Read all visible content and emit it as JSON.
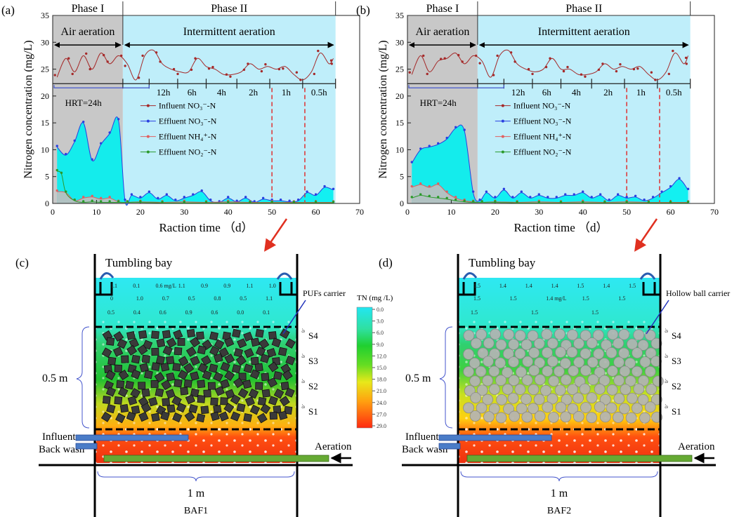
{
  "panels": [
    {
      "id": "a",
      "label": "(a)",
      "phase1": "Phase I",
      "phase2": "Phase II",
      "air": "Air aeration",
      "intermittent": "Intermittent aeration",
      "hrt": "HRT=24h",
      "ylabel": "Nitrogen concentration (mg/L)",
      "xlabel": "Raction time （d）"
    },
    {
      "id": "b",
      "label": "(b)",
      "phase1": "Phase I",
      "phase2": "Phase II",
      "air": "Air aeration",
      "intermittent": "Intermittent aeration",
      "hrt": "HRT=24h",
      "ylabel": "Nitrogen concentration (mg/L)",
      "xlabel": "Raction time （d）"
    }
  ],
  "hrt_segments": [
    "12h",
    "6h",
    "4h",
    "2h",
    "1h",
    "0.5h"
  ],
  "legend": [
    "Influent NO₃⁻-N",
    "Effluent NO₃⁻-N",
    "Effluent NH₄⁺-N",
    "Effluent NO₂⁻-N"
  ],
  "colors": {
    "influent": "#a52a2a",
    "effluent_no3": "#2a40e0",
    "effluent_nh4": "#e06060",
    "effluent_no2": "#2a9a2a",
    "phase1_bg": "#c8c8c8",
    "phase2_bg": "#bfeefa",
    "fill": "#00f0f0",
    "arrow": "#e03020",
    "dash": "#e03030"
  },
  "chart_data": [
    {
      "type": "line",
      "title": "(a)",
      "xlabel": "Raction time （d）",
      "ylabel": "Nitrogen concentration (mg/L)",
      "xlim": [
        0,
        70
      ],
      "ylim": [
        0,
        35
      ],
      "xticks": [
        0,
        10,
        20,
        30,
        40,
        50,
        60,
        70
      ],
      "yticks": [
        0,
        5,
        10,
        15,
        20,
        25,
        30,
        35
      ],
      "phase_boundaries": [
        16,
        64.5
      ],
      "hrt_breaks": [
        16,
        22,
        28.5,
        35,
        42,
        49.5,
        57,
        64.5
      ],
      "marker_lines": [
        50,
        57.5
      ],
      "series": [
        {
          "name": "Influent NO₃⁻-N",
          "x": [
            1,
            3,
            5,
            7,
            9,
            11,
            13,
            15,
            17,
            19,
            21,
            23,
            25,
            27,
            29,
            31,
            33,
            35,
            37,
            39,
            41,
            43,
            45,
            47,
            49,
            51,
            53,
            55,
            57,
            59,
            61,
            63,
            64
          ],
          "values": [
            23.5,
            27,
            24.5,
            27.5,
            25,
            28,
            26,
            27.5,
            26,
            23,
            27.5,
            28.5,
            26,
            25,
            24.5,
            24.5,
            27,
            25.5,
            25,
            24,
            24,
            24.5,
            26,
            25,
            25.5,
            25,
            25.5,
            24,
            23,
            24.5,
            28,
            26,
            27
          ]
        },
        {
          "name": "Effluent NO₃⁻-N",
          "x": [
            1,
            3,
            5,
            7,
            9,
            11,
            13,
            15,
            16.5,
            18,
            20,
            22,
            24,
            26,
            28,
            30,
            32,
            34,
            36,
            38,
            40,
            42,
            44,
            46,
            48,
            50,
            52,
            54,
            56,
            58,
            60,
            62,
            64
          ],
          "values": [
            10.5,
            9,
            11.5,
            15,
            8,
            11,
            13,
            15.5,
            0.5,
            1.5,
            1,
            2,
            0.8,
            1.5,
            0.5,
            1,
            1.5,
            2.2,
            0.5,
            0.2,
            1,
            0.3,
            1,
            0.2,
            0.8,
            0.5,
            0.5,
            0.3,
            0.5,
            2,
            1.5,
            3,
            2.5
          ]
        },
        {
          "name": "Effluent NH₄⁺-N",
          "x": [
            1,
            3,
            5,
            7,
            9,
            11,
            13,
            15,
            17,
            20,
            25,
            30,
            35,
            40,
            45,
            50,
            55,
            60,
            64
          ],
          "values": [
            2.2,
            2,
            0.5,
            1,
            1.2,
            0.8,
            1,
            0.3,
            0.2,
            0.3,
            0.2,
            0.3,
            0.2,
            0.3,
            0.2,
            0.2,
            0.2,
            0.2,
            0.2
          ]
        },
        {
          "name": "Effluent NO₂⁻-N",
          "x": [
            1,
            2,
            3,
            5,
            7,
            9,
            11,
            13,
            15,
            17,
            20,
            25,
            30,
            35,
            40,
            45,
            50,
            55,
            60,
            64
          ],
          "values": [
            6,
            5.5,
            2,
            0.5,
            0.2,
            0.3,
            0.2,
            0.2,
            0.2,
            0.2,
            0.2,
            0.1,
            0.1,
            0.1,
            0.1,
            0.1,
            0.1,
            0.1,
            0.1,
            0.1
          ]
        }
      ]
    },
    {
      "type": "line",
      "title": "(b)",
      "xlabel": "Raction time （d）",
      "ylabel": "Nitrogen concentration (mg/L)",
      "xlim": [
        0,
        70
      ],
      "ylim": [
        0,
        35
      ],
      "xticks": [
        0,
        10,
        20,
        30,
        40,
        50,
        60,
        70
      ],
      "yticks": [
        0,
        5,
        10,
        15,
        20,
        25,
        30,
        35
      ],
      "phase_boundaries": [
        16,
        64.5
      ],
      "hrt_breaks": [
        16,
        22,
        28.5,
        35,
        42,
        49.5,
        57,
        64.5
      ],
      "marker_lines": [
        50,
        57.5
      ],
      "series": [
        {
          "name": "Influent NO₃⁻-N",
          "x": [
            1,
            3,
            5,
            7,
            9,
            11,
            13,
            15,
            17,
            19,
            21,
            23,
            25,
            27,
            29,
            31,
            33,
            35,
            37,
            39,
            41,
            43,
            45,
            47,
            49,
            51,
            53,
            55,
            57,
            59,
            61,
            63,
            64
          ],
          "values": [
            24,
            27.5,
            24.5,
            26.5,
            27,
            28,
            26,
            27.5,
            26.5,
            23.5,
            27.5,
            28.5,
            26,
            25,
            24.5,
            25,
            27,
            25,
            25,
            24,
            24,
            24.5,
            26,
            25,
            25.5,
            25,
            25.5,
            24,
            23,
            24.5,
            28,
            26,
            27.5
          ]
        },
        {
          "name": "Effluent NO₃⁻-N",
          "x": [
            1,
            3,
            5,
            7,
            9,
            11,
            13,
            15,
            16.5,
            18,
            20,
            22,
            24,
            26,
            28,
            30,
            32,
            34,
            36,
            38,
            40,
            42,
            44,
            46,
            48,
            50,
            52,
            54,
            56,
            58,
            60,
            62,
            64
          ],
          "values": [
            7.5,
            10,
            10.5,
            11,
            12,
            14,
            13.5,
            2,
            0.5,
            2,
            1,
            2.5,
            1,
            2,
            1,
            1.5,
            1,
            1,
            1.5,
            1.5,
            2,
            1,
            1.5,
            0.5,
            1.5,
            1,
            1.2,
            0.5,
            1,
            2,
            3,
            4.5,
            2.5
          ]
        },
        {
          "name": "Effluent NH₄⁺-N",
          "x": [
            1,
            3,
            5,
            7,
            9,
            11,
            13,
            15,
            17,
            20,
            25,
            30,
            35,
            40,
            45,
            50,
            55,
            60,
            64
          ],
          "values": [
            3,
            3.5,
            3,
            3.5,
            2,
            1,
            0.5,
            0.3,
            0.2,
            0.3,
            0.2,
            0.3,
            0.2,
            0.3,
            0.2,
            0.3,
            0.2,
            0.2,
            0.2
          ]
        },
        {
          "name": "Effluent NO₂⁻-N",
          "x": [
            1,
            3,
            5,
            7,
            9,
            11,
            13,
            15,
            17,
            20,
            25,
            30,
            35,
            40,
            45,
            50,
            55,
            60,
            64
          ],
          "values": [
            1,
            1.5,
            1.2,
            1,
            0.8,
            0.5,
            0.3,
            0.2,
            0.2,
            0.2,
            0.1,
            0.1,
            0.1,
            0.1,
            0.1,
            0.1,
            0.1,
            0.1,
            0.1
          ]
        }
      ]
    }
  ],
  "colorbar": {
    "title": "TN (mg /L)",
    "ticks": [
      "0.0",
      "3.0",
      "6.0",
      "9.0",
      "12.0",
      "15.0",
      "18.0",
      "21.0",
      "24.0",
      "27.0",
      "29.0"
    ]
  },
  "reactors": [
    {
      "label": "(c)",
      "name": "BAF1",
      "carrier": "PUFs carrier",
      "tumbling": "Tumbling bay",
      "height": "0.5 m",
      "width": "1 m",
      "influent": "Influent",
      "backwash": "Back wash",
      "aeration": "Aeration",
      "sensors": [
        "S4",
        "S3",
        "S2",
        "S1"
      ],
      "tn_row1": [
        "1.1",
        "0.1",
        "0.6 mg/L",
        "1.1",
        "0.9",
        "0.9",
        "1.1",
        "1.0"
      ],
      "tn_row2": [
        "0",
        "1.0",
        "0.7",
        "0.5",
        "0.8",
        "0.5",
        "1.1"
      ],
      "tn_row3": [
        "0.5",
        "0.4",
        "0.6",
        "0.9",
        "0.6",
        "0.0",
        "0.1"
      ]
    },
    {
      "label": "(d)",
      "name": "BAF2",
      "carrier": "Hollow ball carrier",
      "tumbling": "Tumbling bay",
      "height": "0.5 m",
      "width": "1 m",
      "influent": "Influent",
      "backwash": "Back wash",
      "aeration": "Aeration",
      "sensors": [
        "S4",
        "S3",
        "S2",
        "S1"
      ],
      "tn_row1": [
        "1.5",
        "1.4",
        "1.4",
        "1.4",
        "1.5",
        "1.4",
        "1.5"
      ],
      "tn_row2": [
        "1.5",
        "1.5",
        "1.4 mg/L",
        "1.5",
        "1.5"
      ],
      "tn_row3": [
        "1.5",
        "1.5",
        "1.5"
      ]
    }
  ]
}
